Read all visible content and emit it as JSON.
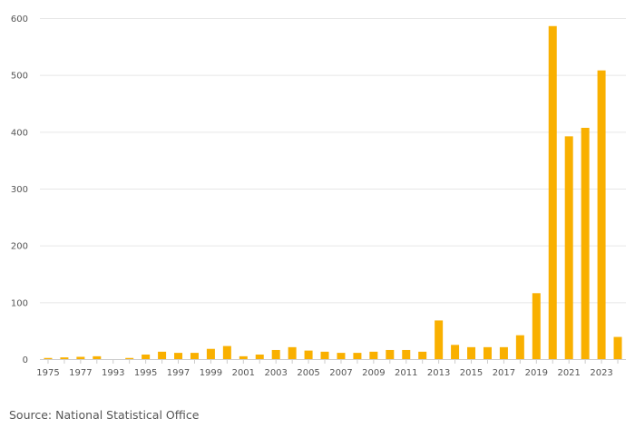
{
  "chart_data": {
    "type": "bar",
    "categories": [
      "1975",
      "1976",
      "1977",
      "1978",
      "1993",
      "1994",
      "1995",
      "1996",
      "1997",
      "1998",
      "1999",
      "2000",
      "2001",
      "2002",
      "2003",
      "2004",
      "2005",
      "2006",
      "2007",
      "2008",
      "2009",
      "2010",
      "2011",
      "2012",
      "2013",
      "2014",
      "2015",
      "2016",
      "2017",
      "2018",
      "2019",
      "2020",
      "2021",
      "2022",
      "2023",
      "2024"
    ],
    "values": [
      2,
      3,
      4,
      5,
      0,
      2,
      8,
      13,
      11,
      11,
      18,
      23,
      5,
      8,
      16,
      21,
      15,
      13,
      11,
      11,
      13,
      16,
      16,
      13,
      68,
      25,
      21,
      21,
      21,
      42,
      116,
      586,
      392,
      407,
      508,
      39
    ],
    "x_tick_labels": [
      "1975",
      "1977",
      "1993",
      "1995",
      "1997",
      "1999",
      "2001",
      "2003",
      "2005",
      "2007",
      "2009",
      "2011",
      "2013",
      "2015",
      "2017",
      "2019",
      "2021",
      "2023"
    ],
    "y_ticks": [
      "0",
      "100",
      "200",
      "300",
      "400",
      "500",
      "600"
    ],
    "ylim": [
      0,
      600
    ],
    "grid": true,
    "bar_color": "#f9b000",
    "title": "",
    "xlabel": "",
    "ylabel": ""
  },
  "source": "Source: National Statistical Office"
}
